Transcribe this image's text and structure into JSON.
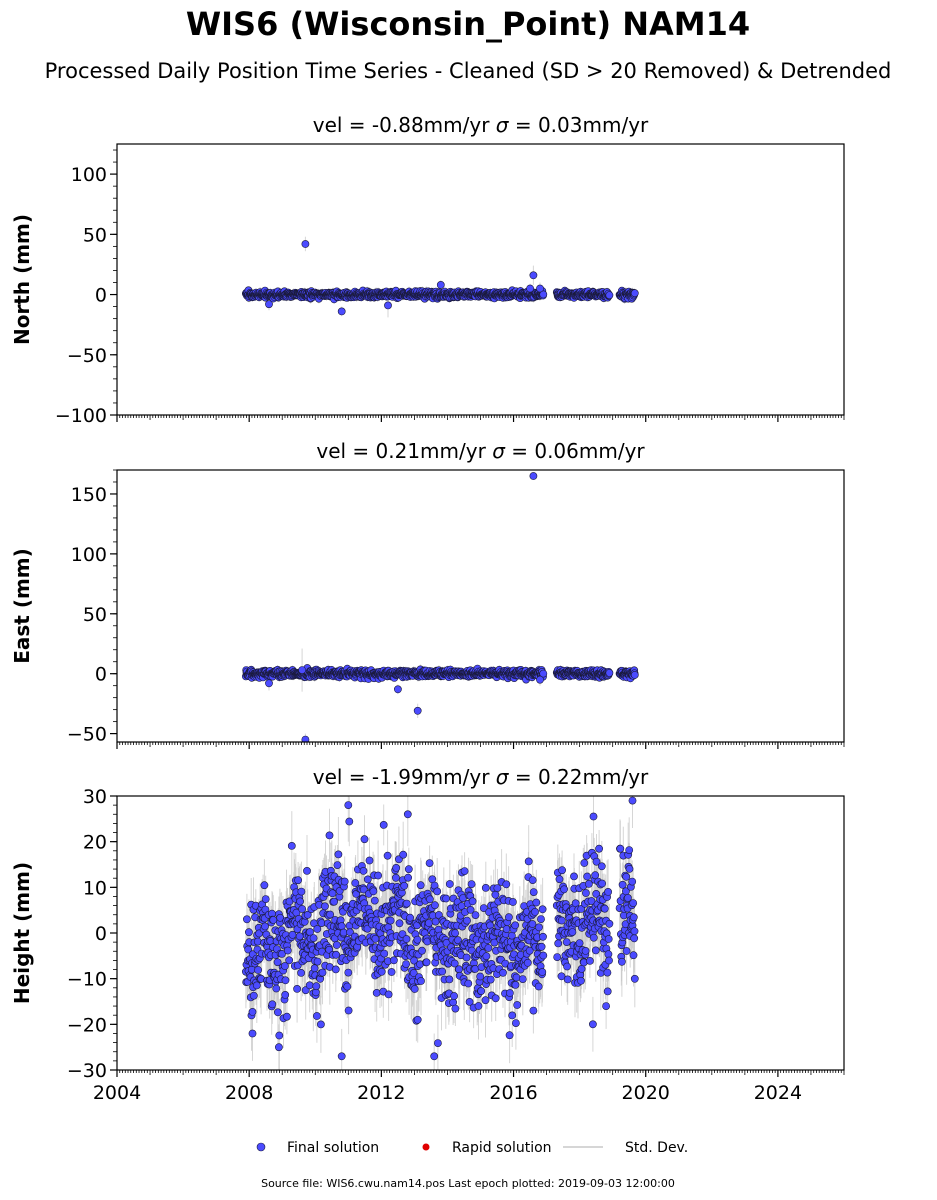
{
  "title": "WIS6 (Wisconsin_Point) NAM14",
  "subtitle": "Processed Daily Position Time Series - Cleaned (SD > 20 Removed) & Detrended",
  "footer": "Source file: WIS6.cwu.nam14.pos  Last epoch plotted: 2019-09-03 12:00:00",
  "colors": {
    "final": "#4b4bff",
    "rapid": "#e00000",
    "stddev": "#c8c8c8",
    "edge": "#1a1a3a"
  },
  "legend": [
    {
      "label": "Final solution",
      "kind": "final-marker"
    },
    {
      "label": "Rapid solution",
      "kind": "rapid-marker"
    },
    {
      "label": "Std. Dev.",
      "kind": "stddev-line"
    }
  ],
  "chart_data": [
    {
      "type": "scatter",
      "component": "north",
      "title_vel": "vel = -0.88mm/yr",
      "title_sigma": " = 0.03mm/yr",
      "ylabel": "North (mm)",
      "ylim": [
        -100,
        125
      ],
      "yticks": [
        100,
        50,
        0,
        -50,
        -100
      ],
      "ytick_labels": [
        "100",
        "50",
        "0",
        "−50",
        "−100"
      ],
      "xlim": [
        2004,
        2026
      ],
      "xticks": [
        2004,
        2008,
        2012,
        2016,
        2020,
        2024
      ],
      "xtick_labels": [],
      "data_span": [
        2007.9,
        2019.67
      ],
      "gaps": [
        [
          2016.9,
          2017.3
        ],
        [
          2018.9,
          2019.2
        ]
      ],
      "scatter_sd": 1.3,
      "stddev_typical": 3,
      "outliers": [
        {
          "x": 2009.7,
          "y": 42,
          "sd": 6
        },
        {
          "x": 2010.8,
          "y": -14,
          "sd": 4
        },
        {
          "x": 2016.6,
          "y": 16,
          "sd": 8
        },
        {
          "x": 2013.8,
          "y": 8,
          "sd": 4
        },
        {
          "x": 2016.8,
          "y": 5,
          "sd": 5
        },
        {
          "x": 2012.2,
          "y": -9,
          "sd": 10
        },
        {
          "x": 2008.6,
          "y": -8,
          "sd": 5
        },
        {
          "x": 2016.5,
          "y": 5,
          "sd": 4
        }
      ]
    },
    {
      "type": "scatter",
      "component": "east",
      "title_vel": "vel = 0.21mm/yr",
      "title_sigma": " = 0.06mm/yr",
      "ylabel": "East (mm)",
      "ylim": [
        -57,
        170
      ],
      "yticks": [
        150,
        100,
        50,
        0,
        -50
      ],
      "ytick_labels": [
        "150",
        "100",
        "50",
        "0",
        "−50"
      ],
      "xlim": [
        2004,
        2026
      ],
      "xticks": [
        2004,
        2008,
        2012,
        2016,
        2020,
        2024
      ],
      "xtick_labels": [],
      "data_span": [
        2007.9,
        2019.67
      ],
      "gaps": [
        [
          2016.9,
          2017.3
        ],
        [
          2018.9,
          2019.2
        ]
      ],
      "scatter_sd": 1.4,
      "stddev_typical": 3,
      "outliers": [
        {
          "x": 2016.6,
          "y": 165,
          "sd": 2
        },
        {
          "x": 2013.1,
          "y": -31,
          "sd": 6
        },
        {
          "x": 2009.7,
          "y": -55,
          "sd": 5
        },
        {
          "x": 2012.5,
          "y": -13,
          "sd": 4
        },
        {
          "x": 2009.6,
          "y": 3,
          "sd": 18
        },
        {
          "x": 2008.6,
          "y": -8,
          "sd": 6
        },
        {
          "x": 2016.8,
          "y": -5,
          "sd": 5
        }
      ]
    },
    {
      "type": "scatter",
      "component": "height",
      "title_vel": "vel = -1.99mm/yr",
      "title_sigma": " = 0.22mm/yr",
      "ylabel": "Height (mm)",
      "ylim": [
        -30,
        30
      ],
      "yticks": [
        30,
        20,
        10,
        0,
        -10,
        -20,
        -30
      ],
      "ytick_labels": [
        "30",
        "20",
        "10",
        "0",
        "−10",
        "−20",
        "−30"
      ],
      "xlim": [
        2004,
        2026
      ],
      "xticks": [
        2004,
        2008,
        2012,
        2016,
        2020,
        2024
      ],
      "xtick_labels": [
        "2004",
        "2008",
        "2012",
        "2016",
        "2020",
        "2024"
      ],
      "data_span": [
        2007.9,
        2019.67
      ],
      "gaps": [
        [
          2016.9,
          2017.3
        ],
        [
          2018.9,
          2019.2
        ]
      ],
      "scatter_sd": 6.5,
      "stddev_typical": 6,
      "outliers": [
        {
          "x": 2011.0,
          "y": 28,
          "sd": 8
        },
        {
          "x": 2019.6,
          "y": 29,
          "sd": 6
        },
        {
          "x": 2013.6,
          "y": -27,
          "sd": 5
        },
        {
          "x": 2008.1,
          "y": -22,
          "sd": 6
        },
        {
          "x": 2010.8,
          "y": -27,
          "sd": 6
        },
        {
          "x": 2012.8,
          "y": 26,
          "sd": 7
        },
        {
          "x": 2008.9,
          "y": -25,
          "sd": 5
        },
        {
          "x": 2013.1,
          "y": -19,
          "sd": 5
        },
        {
          "x": 2016.6,
          "y": -17,
          "sd": 5
        },
        {
          "x": 2018.4,
          "y": -20,
          "sd": 6
        },
        {
          "x": 2018.8,
          "y": -16,
          "sd": 5
        }
      ]
    }
  ]
}
